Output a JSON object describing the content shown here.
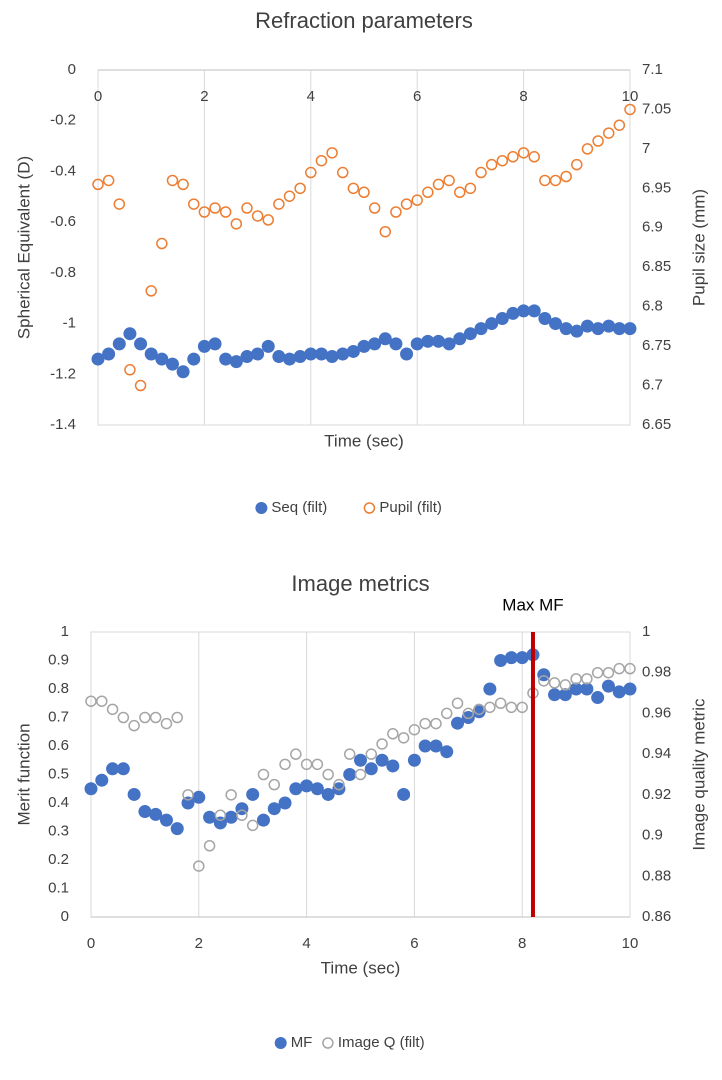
{
  "chart_data": [
    {
      "type": "scatter",
      "title": "Refraction parameters",
      "x_label": "Time (sec)",
      "y_label": "Spherical Equivalent (D)",
      "y2_label": "Pupil size (mm)",
      "x": [
        0,
        0.2,
        0.4,
        0.6,
        0.8,
        1,
        1.2,
        1.4,
        1.6,
        1.8,
        2,
        2.2,
        2.4,
        2.6,
        2.8,
        3,
        3.2,
        3.4,
        3.6,
        3.8,
        4,
        4.2,
        4.4,
        4.6,
        4.8,
        5,
        5.2,
        5.4,
        5.6,
        5.8,
        6,
        6.2,
        6.4,
        6.6,
        6.8,
        7,
        7.2,
        7.4,
        7.6,
        7.8,
        8,
        8.2,
        8.4,
        8.6,
        8.8,
        9,
        9.2,
        9.4,
        9.6,
        9.8,
        10
      ],
      "series": [
        {
          "name": "Seq (filt)",
          "color": "#4472c4",
          "marker": "filled",
          "axis": "y",
          "values": [
            -1.14,
            -1.12,
            -1.08,
            -1.04,
            -1.08,
            -1.12,
            -1.14,
            -1.16,
            -1.19,
            -1.14,
            -1.09,
            -1.08,
            -1.14,
            -1.15,
            -1.13,
            -1.12,
            -1.09,
            -1.13,
            -1.14,
            -1.13,
            -1.12,
            -1.12,
            -1.13,
            -1.12,
            -1.11,
            -1.09,
            -1.08,
            -1.06,
            -1.08,
            -1.12,
            -1.08,
            -1.07,
            -1.07,
            -1.08,
            -1.06,
            -1.04,
            -1.02,
            -1.0,
            -0.98,
            -0.96,
            -0.95,
            -0.95,
            -0.98,
            -1.0,
            -1.02,
            -1.03,
            -1.01,
            -1.02,
            -1.01,
            -1.02,
            -1.02
          ]
        },
        {
          "name": "Pupil (filt)",
          "color": "#ed7d31",
          "marker": "hollow",
          "axis": "y2",
          "values": [
            6.955,
            6.96,
            6.93,
            6.72,
            6.7,
            6.82,
            6.88,
            6.96,
            6.955,
            6.93,
            6.92,
            6.925,
            6.92,
            6.905,
            6.925,
            6.915,
            6.91,
            6.93,
            6.94,
            6.95,
            6.97,
            6.985,
            6.995,
            6.97,
            6.95,
            6.945,
            6.925,
            6.895,
            6.92,
            6.93,
            6.935,
            6.945,
            6.955,
            6.96,
            6.945,
            6.95,
            6.97,
            6.98,
            6.985,
            6.99,
            6.995,
            6.99,
            6.96,
            6.96,
            6.965,
            6.98,
            7.0,
            7.01,
            7.02,
            7.03,
            7.05
          ]
        }
      ],
      "xlim": [
        0,
        10
      ],
      "xticks": [
        0,
        2,
        4,
        6,
        8,
        10
      ],
      "ylim": [
        -1.4,
        0
      ],
      "yticks": [
        0,
        -0.2,
        -0.4,
        -0.6,
        -0.8,
        -1,
        -1.2,
        -1.4
      ],
      "y2lim": [
        6.65,
        7.1
      ],
      "y2ticks": [
        7.1,
        7.05,
        7,
        6.95,
        6.9,
        6.85,
        6.8,
        6.75,
        6.7,
        6.65
      ],
      "grid": "x",
      "legend": "bottom"
    },
    {
      "type": "scatter",
      "title": "Image metrics",
      "x_label": "Time (sec)",
      "y_label": "Merit function",
      "y2_label": "Image quality metric",
      "x": [
        0,
        0.2,
        0.4,
        0.6,
        0.8,
        1,
        1.2,
        1.4,
        1.6,
        1.8,
        2,
        2.2,
        2.4,
        2.6,
        2.8,
        3,
        3.2,
        3.4,
        3.6,
        3.8,
        4,
        4.2,
        4.4,
        4.6,
        4.8,
        5,
        5.2,
        5.4,
        5.6,
        5.8,
        6,
        6.2,
        6.4,
        6.6,
        6.8,
        7,
        7.2,
        7.4,
        7.6,
        7.8,
        8,
        8.2,
        8.4,
        8.6,
        8.8,
        9,
        9.2,
        9.4,
        9.6,
        9.8,
        10
      ],
      "series": [
        {
          "name": "MF",
          "color": "#4472c4",
          "marker": "filled",
          "axis": "y",
          "values": [
            0.45,
            0.48,
            0.52,
            0.52,
            0.43,
            0.37,
            0.36,
            0.34,
            0.31,
            0.4,
            0.42,
            0.35,
            0.33,
            0.35,
            0.38,
            0.43,
            0.34,
            0.38,
            0.4,
            0.45,
            0.46,
            0.45,
            0.43,
            0.45,
            0.5,
            0.55,
            0.52,
            0.55,
            0.53,
            0.43,
            0.55,
            0.6,
            0.6,
            0.58,
            0.68,
            0.7,
            0.72,
            0.8,
            0.9,
            0.91,
            0.91,
            0.92,
            0.85,
            0.78,
            0.78,
            0.8,
            0.8,
            0.77,
            0.81,
            0.79,
            0.8
          ]
        },
        {
          "name": "Image Q (filt)",
          "color": "#a5a5a5",
          "marker": "hollow",
          "axis": "y2",
          "values": [
            0.966,
            0.966,
            0.962,
            0.958,
            0.954,
            0.958,
            0.958,
            0.955,
            0.958,
            0.92,
            0.885,
            0.895,
            0.91,
            0.92,
            0.91,
            0.905,
            0.93,
            0.925,
            0.935,
            0.94,
            0.935,
            0.935,
            0.93,
            0.925,
            0.94,
            0.93,
            0.94,
            0.945,
            0.95,
            0.948,
            0.952,
            0.955,
            0.955,
            0.96,
            0.965,
            0.96,
            0.962,
            0.963,
            0.965,
            0.963,
            0.963,
            0.97,
            0.976,
            0.975,
            0.974,
            0.977,
            0.977,
            0.98,
            0.98,
            0.982,
            0.982
          ]
        }
      ],
      "xlim": [
        0,
        10
      ],
      "xticks": [
        0,
        2,
        4,
        6,
        8,
        10
      ],
      "ylim": [
        0,
        1
      ],
      "yticks": [
        0,
        0.1,
        0.2,
        0.3,
        0.4,
        0.5,
        0.6,
        0.7,
        0.8,
        0.9,
        1
      ],
      "y2lim": [
        0.86,
        1
      ],
      "y2ticks": [
        0.86,
        0.88,
        0.9,
        0.92,
        0.94,
        0.96,
        0.98,
        1
      ],
      "grid": "x",
      "legend": "bottom",
      "annotations": [
        {
          "text": "Max MF",
          "x": 8.2,
          "color": "#c00000"
        }
      ]
    }
  ]
}
